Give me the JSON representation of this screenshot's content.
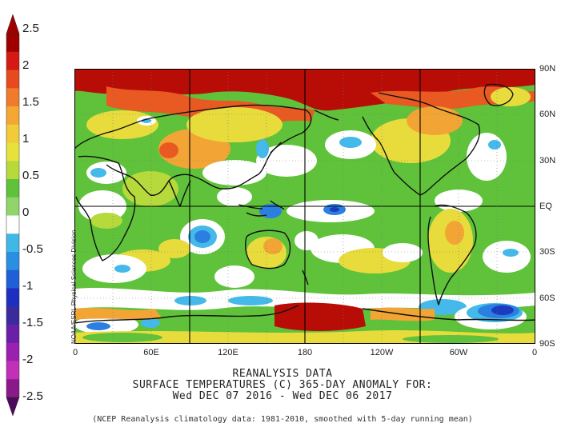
{
  "colorbar": {
    "labels": [
      "2.5",
      "2",
      "1.5",
      "1",
      "0.5",
      "0",
      "-0.5",
      "-1",
      "-1.5",
      "-2",
      "-2.5"
    ],
    "colors": {
      "2.5": "#9e0000",
      "2.25": "#d41a12",
      "2": "#e84a20",
      "1.75": "#f07b2a",
      "1.5": "#f5a733",
      "1.25": "#f2cb38",
      "1": "#e6e23a",
      "0.75": "#b7d93a",
      "0.5": "#5fc23a",
      "0.25": "#8fd56a",
      "0": "#ffffff",
      "-0.25": "#3fb8e8",
      "-0.5": "#2a8fe0",
      "-0.75": "#1f5fd8",
      "-1": "#1c2fbf",
      "-1.25": "#3b2a9c",
      "-1.5": "#6a1fa8",
      "-1.75": "#9a20b0",
      "-2": "#c230b8",
      "-2.25": "#8a1a8a",
      "-2.5": "#4b0a5a"
    }
  },
  "axes": {
    "lat_labels": [
      "90N",
      "60N",
      "30N",
      "EQ",
      "30S",
      "60S",
      "90S"
    ],
    "lon_labels": [
      "0",
      "60E",
      "120E",
      "180",
      "120W",
      "60W",
      "0"
    ]
  },
  "credit": "NOAA/ESRL Physical Sciences Division",
  "title": {
    "line1": "REANALYSIS DATA",
    "line2": "SURFACE TEMPERATURES (C)   365-DAY ANOMALY FOR:",
    "line3": "Wed DEC 07 2016 - Wed DEC 06 2017"
  },
  "footnote": "(NCEP Reanalysis climatology data: 1981-2010, smoothed with 5-day running mean)",
  "map_colors": {
    "strong_warm": "#b80d06",
    "warm": "#e85a22",
    "orange": "#f2a535",
    "yellow": "#e8dc3c",
    "yellowgreen": "#b6d93b",
    "green": "#5fc23a",
    "white": "#ffffff",
    "cyan": "#44b9ea",
    "blue": "#2a7fe0",
    "darkblue": "#1c3bbf",
    "land_outline": "#111111"
  }
}
